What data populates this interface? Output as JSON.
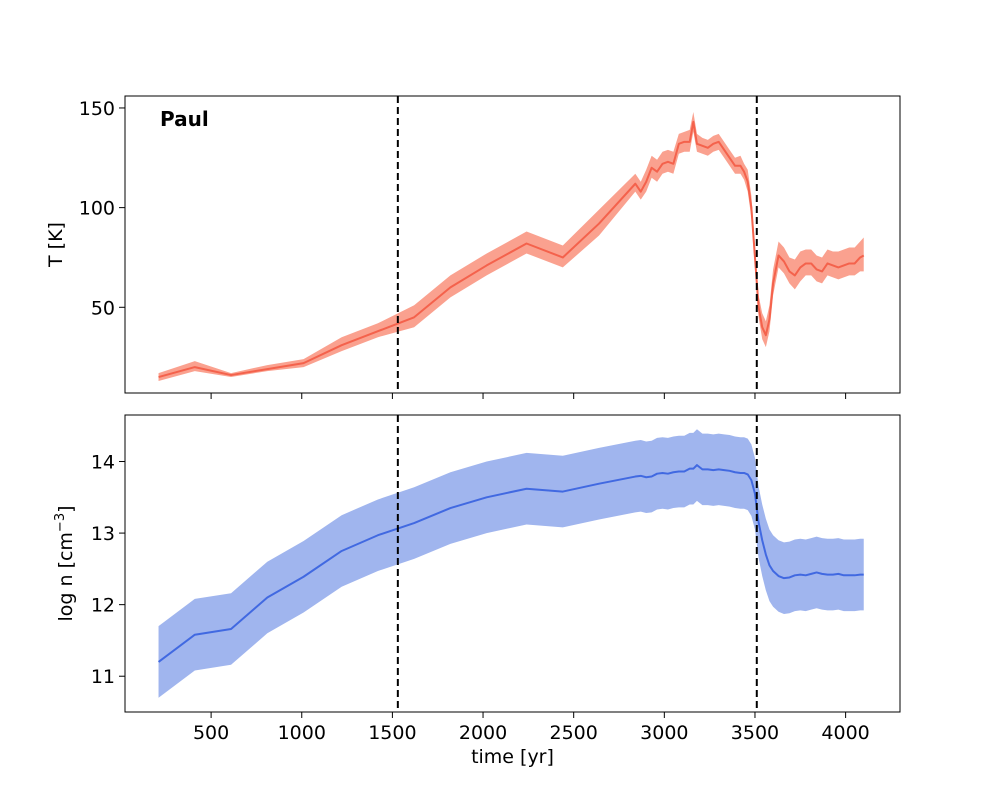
{
  "figure_label": "Paul",
  "colors": {
    "temperature_line": "#f4624c",
    "temperature_band": "#faa18f",
    "density_line": "#4169e1",
    "density_band": "#a0b5ee",
    "marker_line": "#000000"
  },
  "chart_data": [
    {
      "type": "line",
      "panel": "top",
      "title": "",
      "xlabel": "",
      "ylabel": "T [K]",
      "xlim": [
        25,
        4300
      ],
      "ylim": [
        7,
        156
      ],
      "yticks": [
        50,
        100,
        150
      ],
      "xticks": [
        500,
        1000,
        1500,
        2000,
        2500,
        3000,
        3500,
        4000
      ],
      "show_xtick_labels": false,
      "grid": false,
      "vlines": [
        1530,
        3510
      ],
      "label_text": "Paul",
      "series": [
        {
          "x": [
            210,
            410,
            610,
            810,
            1010,
            1220,
            1420,
            1620,
            1820,
            2020,
            2240,
            2440,
            2640,
            2840,
            2870,
            2900,
            2930,
            2960,
            2990,
            3020,
            3050,
            3080,
            3110,
            3140,
            3160,
            3180,
            3210,
            3240,
            3270,
            3300,
            3330,
            3360,
            3390,
            3420,
            3440,
            3460,
            3480,
            3500,
            3520,
            3540,
            3560,
            3580,
            3600,
            3630,
            3660,
            3690,
            3720,
            3750,
            3780,
            3810,
            3840,
            3870,
            3900,
            3930,
            3960,
            3990,
            4020,
            4050,
            4080,
            4100
          ],
          "y": [
            15,
            20,
            16,
            19,
            22,
            31,
            38,
            45,
            60,
            71,
            82,
            75,
            92,
            112,
            108,
            113,
            120,
            118,
            122,
            123,
            122,
            132,
            133,
            133,
            143,
            132,
            131,
            130,
            132,
            133,
            129,
            125,
            121,
            121,
            118,
            113,
            100,
            75,
            50,
            40,
            36,
            44,
            62,
            76,
            73,
            68,
            66,
            70,
            72,
            72,
            69,
            68,
            72,
            71,
            70,
            71,
            72,
            72,
            75,
            76
          ],
          "lower": [
            13,
            18,
            15,
            18,
            20,
            28,
            35,
            40,
            55,
            66,
            77,
            70,
            86,
            108,
            104,
            108,
            115,
            113,
            117,
            118,
            117,
            127,
            128,
            128,
            138,
            128,
            127,
            126,
            128,
            129,
            125,
            121,
            117,
            117,
            114,
            108,
            95,
            70,
            45,
            34,
            30,
            38,
            56,
            70,
            67,
            62,
            59,
            63,
            66,
            66,
            63,
            62,
            66,
            65,
            64,
            65,
            66,
            66,
            68,
            68
          ]
        },
        {
          "x": [
            210,
            410,
            610,
            810,
            1010,
            1220,
            1420,
            1620,
            1820,
            2020,
            2240,
            2440,
            2640,
            2840,
            2870,
            2900,
            2930,
            2960,
            2990,
            3020,
            3050,
            3080,
            3110,
            3140,
            3160,
            3180,
            3210,
            3240,
            3270,
            3300,
            3330,
            3360,
            3390,
            3420,
            3440,
            3460,
            3480,
            3500,
            3520,
            3540,
            3560,
            3580,
            3600,
            3630,
            3660,
            3690,
            3720,
            3750,
            3780,
            3810,
            3840,
            3870,
            3900,
            3930,
            3960,
            3990,
            4020,
            4050,
            4080,
            4100
          ],
          "upper": [
            17,
            23,
            17,
            21,
            24,
            35,
            42,
            51,
            66,
            77,
            88,
            81,
            99,
            117,
            113,
            119,
            126,
            124,
            128,
            129,
            128,
            137,
            138,
            139,
            148,
            137,
            135,
            134,
            136,
            137,
            133,
            129,
            125,
            126,
            122,
            119,
            106,
            81,
            56,
            47,
            43,
            51,
            69,
            83,
            80,
            75,
            74,
            78,
            79,
            79,
            76,
            75,
            79,
            78,
            78,
            79,
            80,
            80,
            83,
            85
          ]
        }
      ]
    },
    {
      "type": "line",
      "panel": "bottom",
      "title": "",
      "xlabel": "time [yr]",
      "ylabel": "log n [cm",
      "ylabel_exponent": "−3",
      "ylabel_close": "]",
      "xlim": [
        25,
        4300
      ],
      "ylim": [
        10.5,
        14.65
      ],
      "yticks": [
        11,
        12,
        13,
        14
      ],
      "xticks": [
        500,
        1000,
        1500,
        2000,
        2500,
        3000,
        3500,
        4000
      ],
      "show_xtick_labels": true,
      "grid": false,
      "vlines": [
        1530,
        3510
      ],
      "series": [
        {
          "x": [
            210,
            410,
            610,
            810,
            1010,
            1220,
            1420,
            1620,
            1820,
            2020,
            2240,
            2440,
            2640,
            2840,
            2870,
            2900,
            2930,
            2960,
            2990,
            3020,
            3050,
            3080,
            3110,
            3140,
            3160,
            3180,
            3210,
            3240,
            3270,
            3300,
            3330,
            3360,
            3390,
            3420,
            3440,
            3460,
            3480,
            3500,
            3520,
            3540,
            3560,
            3580,
            3600,
            3630,
            3660,
            3690,
            3720,
            3750,
            3780,
            3810,
            3840,
            3870,
            3900,
            3930,
            3960,
            3990,
            4020,
            4050,
            4080,
            4100
          ],
          "y": [
            11.2,
            11.58,
            11.66,
            12.1,
            12.39,
            12.75,
            12.97,
            13.14,
            13.35,
            13.5,
            13.62,
            13.58,
            13.69,
            13.79,
            13.8,
            13.78,
            13.79,
            13.83,
            13.84,
            13.83,
            13.85,
            13.86,
            13.86,
            13.9,
            13.9,
            13.95,
            13.89,
            13.89,
            13.88,
            13.89,
            13.88,
            13.87,
            13.85,
            13.84,
            13.84,
            13.82,
            13.74,
            13.55,
            13.15,
            12.9,
            12.7,
            12.55,
            12.47,
            12.4,
            12.37,
            12.38,
            12.41,
            12.42,
            12.41,
            12.43,
            12.45,
            12.43,
            12.42,
            12.42,
            12.43,
            12.41,
            12.41,
            12.41,
            12.42,
            12.42
          ],
          "lower": [
            10.7,
            11.08,
            11.16,
            11.6,
            11.89,
            12.25,
            12.47,
            12.64,
            12.85,
            13.0,
            13.12,
            13.08,
            13.19,
            13.29,
            13.3,
            13.28,
            13.29,
            13.33,
            13.34,
            13.33,
            13.35,
            13.36,
            13.36,
            13.4,
            13.4,
            13.45,
            13.39,
            13.39,
            13.38,
            13.39,
            13.38,
            13.37,
            13.35,
            13.34,
            13.34,
            13.32,
            13.24,
            13.05,
            12.65,
            12.4,
            12.2,
            12.05,
            11.97,
            11.9,
            11.87,
            11.88,
            11.91,
            11.92,
            11.91,
            11.93,
            11.95,
            11.93,
            11.92,
            11.92,
            11.93,
            11.91,
            11.91,
            11.91,
            11.92,
            11.92
          ],
          "upper": [
            11.7,
            12.08,
            12.16,
            12.6,
            12.89,
            13.25,
            13.47,
            13.64,
            13.85,
            14.0,
            14.12,
            14.08,
            14.19,
            14.29,
            14.3,
            14.28,
            14.29,
            14.33,
            14.34,
            14.33,
            14.35,
            14.36,
            14.36,
            14.4,
            14.4,
            14.45,
            14.39,
            14.39,
            14.38,
            14.39,
            14.38,
            14.37,
            14.35,
            14.34,
            14.34,
            14.32,
            14.24,
            14.05,
            13.65,
            13.4,
            13.2,
            13.05,
            12.97,
            12.9,
            12.87,
            12.88,
            12.91,
            12.92,
            12.91,
            12.93,
            12.95,
            12.93,
            12.92,
            12.92,
            12.93,
            12.91,
            12.91,
            12.91,
            12.92,
            12.92
          ]
        }
      ]
    }
  ]
}
